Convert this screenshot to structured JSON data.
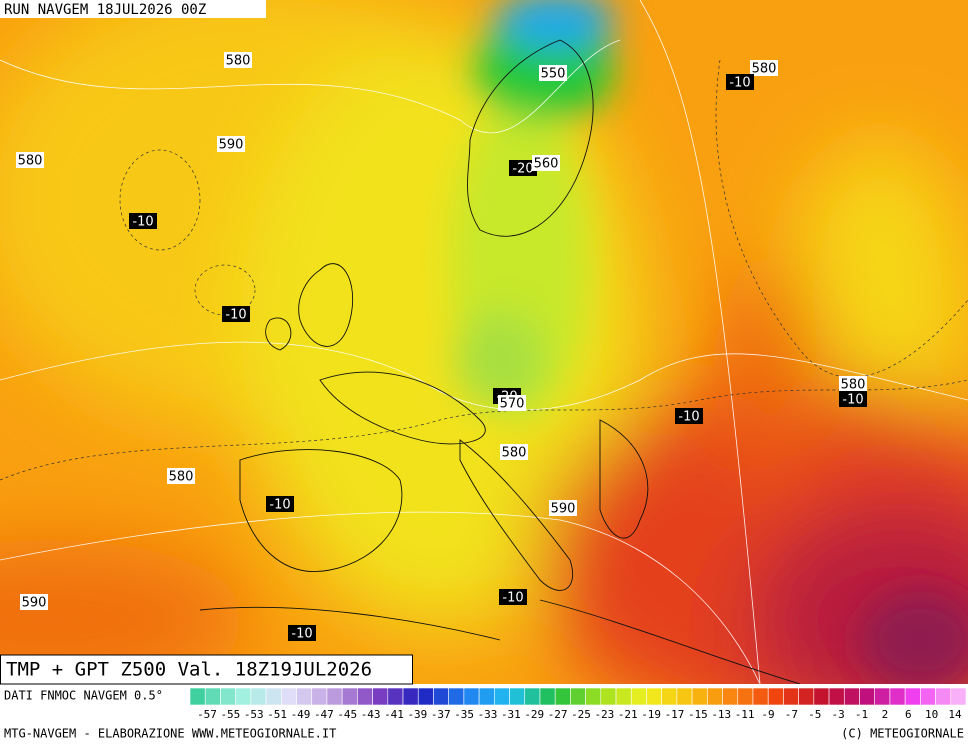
{
  "header": {
    "run": "RUN NAVGEM 18JUL2026 00Z"
  },
  "title": "TMP + GPT Z500 Val. 18Z19JUL2026",
  "contour_labels": [
    580,
    580,
    -10,
    550,
    590,
    580,
    -20,
    560,
    -10,
    -10,
    580,
    -10,
    -20,
    570,
    -10,
    580,
    580,
    -10,
    590,
    590,
    -10,
    -10
  ],
  "legend": {
    "source": "DATI FNMOC NAVGEM 0.5°",
    "ticks": [
      -57,
      -55,
      -53,
      -51,
      -49,
      -47,
      -45,
      -43,
      -41,
      -39,
      -37,
      -35,
      -33,
      -31,
      -29,
      -27,
      -25,
      -23,
      -21,
      -19,
      -17,
      -15,
      -13,
      -11,
      -9,
      -7,
      -5,
      -3,
      -1,
      2,
      6,
      10,
      14
    ]
  },
  "footer": {
    "left": "MTG-NAVGEM - ELABORAZIONE WWW.METEOGIORNALE.IT",
    "right": "(C) METEOGIORNALE"
  }
}
